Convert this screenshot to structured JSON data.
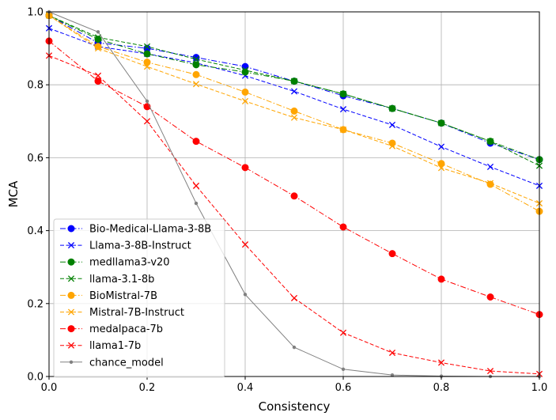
{
  "chart_data": {
    "type": "line",
    "title": "",
    "xlabel": "Consistency",
    "ylabel": "MCA",
    "xlim": [
      0,
      1
    ],
    "ylim": [
      0,
      1
    ],
    "xticks": [
      "0.0",
      "0.2",
      "0.4",
      "0.6",
      "0.8",
      "1.0"
    ],
    "yticks": [
      "0.0",
      "0.2",
      "0.4",
      "0.6",
      "0.8",
      "1.0"
    ],
    "grid": true,
    "legend_position": "lower-left",
    "x": [
      0.0,
      0.1,
      0.2,
      0.3,
      0.4,
      0.5,
      0.6,
      0.7,
      0.8,
      0.9,
      1.0
    ],
    "series": [
      {
        "name": "Bio-Medical-Llama-3-8B",
        "color": "#0000ff",
        "marker": "circle",
        "dash": "dashdot",
        "values": [
          0.99,
          0.915,
          0.9,
          0.875,
          0.85,
          0.81,
          0.77,
          0.735,
          0.695,
          0.64,
          0.595
        ]
      },
      {
        "name": "Llama-3-8B-Instruct",
        "color": "#0000ff",
        "marker": "x",
        "dash": "dashed",
        "values": [
          0.955,
          0.905,
          0.885,
          0.86,
          0.825,
          0.782,
          0.733,
          0.69,
          0.63,
          0.575,
          0.523
        ]
      },
      {
        "name": "medllama3-v20",
        "color": "#008000",
        "marker": "circle",
        "dash": "dashdot",
        "values": [
          0.99,
          0.925,
          0.885,
          0.855,
          0.835,
          0.81,
          0.775,
          0.735,
          0.695,
          0.645,
          0.595
        ]
      },
      {
        "name": "llama-3.1-8b",
        "color": "#008000",
        "marker": "x",
        "dash": "dashed",
        "values": [
          0.99,
          0.93,
          0.905,
          0.87,
          0.84,
          0.81,
          0.775,
          0.735,
          0.695,
          0.645,
          0.578
        ]
      },
      {
        "name": "BioMistral-7B",
        "color": "#ffa500",
        "marker": "circle",
        "dash": "dashdot",
        "values": [
          0.99,
          0.905,
          0.862,
          0.828,
          0.78,
          0.728,
          0.677,
          0.64,
          0.584,
          0.527,
          0.453
        ]
      },
      {
        "name": "Mistral-7B-Instruct",
        "color": "#ffa500",
        "marker": "x",
        "dash": "dashed",
        "values": [
          0.99,
          0.9,
          0.85,
          0.802,
          0.755,
          0.71,
          0.677,
          0.632,
          0.572,
          0.53,
          0.475
        ]
      },
      {
        "name": "medalpaca-7b",
        "color": "#ff0000",
        "marker": "circle",
        "dash": "dashdot",
        "values": [
          0.92,
          0.81,
          0.74,
          0.645,
          0.573,
          0.495,
          0.41,
          0.337,
          0.267,
          0.218,
          0.17
        ]
      },
      {
        "name": "llama1-7b",
        "color": "#ff0000",
        "marker": "x",
        "dash": "dashed",
        "values": [
          0.88,
          0.825,
          0.7,
          0.523,
          0.362,
          0.215,
          0.12,
          0.065,
          0.038,
          0.015,
          0.007
        ]
      },
      {
        "name": "chance_model",
        "color": "#808080",
        "marker": "dot",
        "dash": "solid",
        "values": [
          1.0,
          0.945,
          0.755,
          0.475,
          0.225,
          0.08,
          0.02,
          0.004,
          0.001,
          0.0,
          0.0
        ]
      }
    ]
  }
}
